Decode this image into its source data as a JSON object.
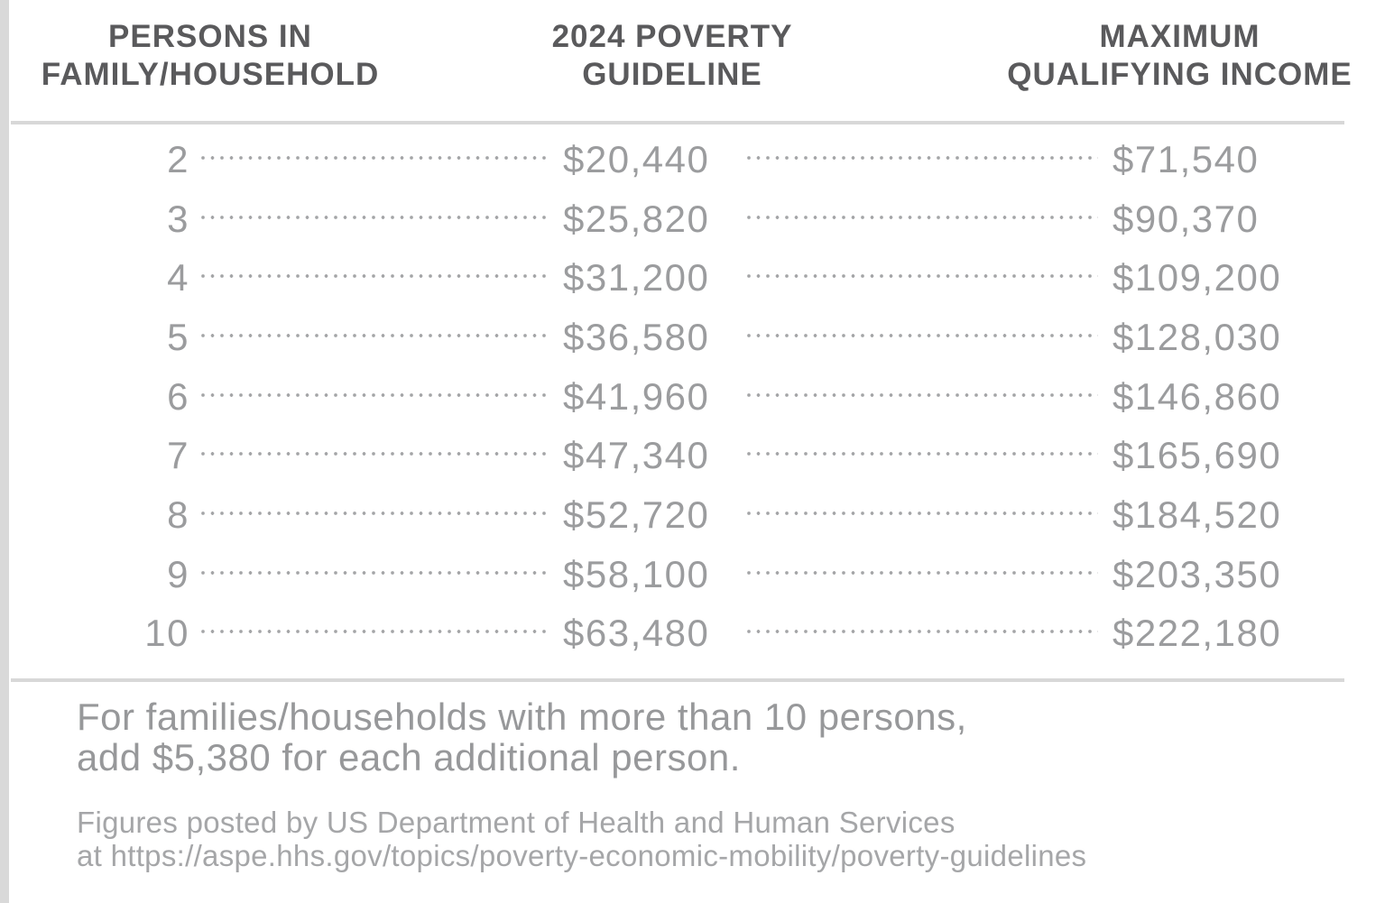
{
  "colors": {
    "background": "#ffffff",
    "header_text": "#5a5a5c",
    "row_text": "#9b9c9e",
    "dot_leader": "#a4a5a7",
    "rule": "#d8d8d8",
    "note_text": "#97989a",
    "source_text": "#a5a6a8"
  },
  "table": {
    "headers": [
      {
        "line1": "PERSONS IN",
        "line2": "FAMILY/HOUSEHOLD"
      },
      {
        "line1": "2024 POVERTY",
        "line2": "GUIDELINE"
      },
      {
        "line1": "MAXIMUM",
        "line2": "QUALIFYING INCOME"
      }
    ],
    "rows": [
      {
        "persons": "2",
        "guideline": "$20,440",
        "max_income": "$71,540"
      },
      {
        "persons": "3",
        "guideline": "$25,820",
        "max_income": "$90,370"
      },
      {
        "persons": "4",
        "guideline": "$31,200",
        "max_income": "$109,200"
      },
      {
        "persons": "5",
        "guideline": "$36,580",
        "max_income": "$128,030"
      },
      {
        "persons": "6",
        "guideline": "$41,960",
        "max_income": "$146,860"
      },
      {
        "persons": "7",
        "guideline": "$47,340",
        "max_income": "$165,690"
      },
      {
        "persons": "8",
        "guideline": "$52,720",
        "max_income": "$184,520"
      },
      {
        "persons": "9",
        "guideline": "$58,100",
        "max_income": "$203,350"
      },
      {
        "persons": "10",
        "guideline": "$63,480",
        "max_income": "$222,180"
      }
    ]
  },
  "notes": {
    "more_persons_line1": "For families/households with more than 10 persons,",
    "more_persons_line2": "add $5,380 for each additional person.",
    "source_line1": "Figures posted by US Department of Health and Human Services",
    "source_line2": "at https://aspe.hhs.gov/topics/poverty-economic-mobility/poverty-guidelines"
  }
}
